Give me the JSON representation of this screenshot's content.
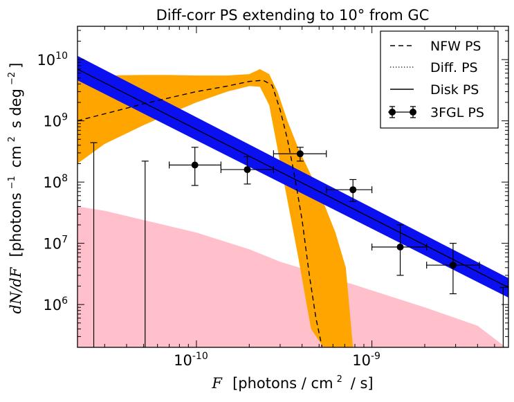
{
  "chart_data": {
    "type": "line",
    "title": "Diff-corr PS extending to 10° from GC",
    "xscale": "log",
    "yscale": "log",
    "xlim": [
      2.1e-11,
      6e-09
    ],
    "ylim": [
      200000.0,
      35000000000.0
    ],
    "x_ticks": [
      {
        "value": 1e-10,
        "base": "10",
        "exp": "-10"
      },
      {
        "value": 1e-09,
        "base": "10",
        "exp": "-9"
      }
    ],
    "y_ticks": [
      {
        "value": 1000000.0,
        "base": "10",
        "exp": "6"
      },
      {
        "value": 10000000.0,
        "base": "10",
        "exp": "7"
      },
      {
        "value": 100000000.0,
        "base": "10",
        "exp": "8"
      },
      {
        "value": 1000000000.0,
        "base": "10",
        "exp": "9"
      },
      {
        "value": 10000000000.0,
        "base": "10",
        "exp": "10"
      }
    ],
    "xlabel": {
      "var": "F",
      "units": "[photons / cm",
      "units_sup": "2",
      "units_end": " / s]"
    },
    "ylabel": {
      "var": "dN/dF",
      "pre": "[photons",
      "pre_sup": "−1",
      "mid": " cm",
      "mid_sup": "2",
      "mid2": " s deg",
      "end_sup": "−2",
      "end": "]"
    },
    "legend": {
      "position": "top-right",
      "entries": [
        {
          "label": "NFW PS",
          "style": "dashed"
        },
        {
          "label": "Diff. PS",
          "style": "dotted"
        },
        {
          "label": "Disk PS",
          "style": "solid"
        },
        {
          "label": "3FGL PS",
          "style": "errorbar"
        }
      ]
    },
    "colors": {
      "nfw_band": "#ffa500",
      "nfw_band_light": "#ffb56a",
      "disk_band": "#0a10f0",
      "diff_band": "#ffc0cb",
      "line": "#000000"
    },
    "series": [
      {
        "name": "NFW PS median",
        "style": "dashed",
        "x": [
          2.1e-11,
          5e-11,
          1e-10,
          1.5e-10,
          2e-10,
          2.4e-10,
          2.7e-10,
          3e-10,
          3.3e-10,
          3.6e-10,
          4e-10,
          4.4e-10,
          4.8e-10,
          5.2e-10
        ],
        "y": [
          1000000000.0,
          1900000000.0,
          3000000000.0,
          3700000000.0,
          4400000000.0,
          4600000000.0,
          3800000000.0,
          1500000000.0,
          500000000.0,
          140000000.0,
          24000000.0,
          3000000.0,
          600000.0,
          200000.0
        ]
      },
      {
        "name": "NFW PS band",
        "style": "band",
        "x": [
          2.1e-11,
          3e-11,
          5e-11,
          7e-11,
          1e-10,
          1.5e-10,
          2e-10,
          2.3e-10,
          2.6e-10,
          2.9e-10,
          3.3e-10,
          3.8e-10,
          4.5e-10,
          5.3e-10,
          6.2e-10,
          7.1e-10,
          7.8e-10
        ],
        "upper": [
          5500000000.0,
          5500000000.0,
          5600000000.0,
          5600000000.0,
          5500000000.0,
          5500000000.0,
          5800000000.0,
          7000000000.0,
          5800000000.0,
          3000000000.0,
          1000000000.0,
          360000000.0,
          130000000.0,
          46000000.0,
          15000000.0,
          4000000.0,
          200000.0
        ],
        "lower": [
          200000000.0,
          420000000.0,
          850000000.0,
          1300000000.0,
          2000000000.0,
          3000000000.0,
          3700000000.0,
          3600000000.0,
          1800000000.0,
          350000000.0,
          50000000.0,
          6000000.0,
          400000.0,
          200000.0,
          200000.0,
          200000.0,
          200000.0
        ]
      },
      {
        "name": "Disk PS",
        "style": "solid",
        "x": [
          2.1e-11,
          6e-09
        ],
        "y": [
          7000000000.0,
          1900000.0
        ],
        "upper": [
          11500000000.0,
          2700000.0
        ],
        "lower": [
          4600000000.0,
          1300000.0
        ]
      },
      {
        "name": "Diff. PS band",
        "style": "band",
        "x": [
          2.1e-11,
          3e-11,
          5e-11,
          1e-10,
          2e-10,
          3e-10,
          5e-10,
          1e-09,
          2e-09,
          4e-09,
          5.8e-09
        ],
        "upper": [
          40000000.0,
          34000000.0,
          24000000.0,
          15000000.0,
          8000000.0,
          5000000.0,
          3200000.0,
          1700000.0,
          900000.0,
          450000.0,
          200000.0
        ],
        "lower": [
          200000.0,
          200000.0,
          200000.0,
          200000.0,
          200000.0,
          200000.0,
          200000.0,
          200000.0,
          200000.0,
          200000.0,
          200000.0
        ]
      },
      {
        "name": "3FGL PS",
        "style": "errorbar",
        "points": [
          {
            "x": 9.8e-11,
            "y": 190000000.0,
            "xlo": 7e-11,
            "xhi": 1.38e-10,
            "ylo": 88000000.0,
            "yhi": 370000000.0
          },
          {
            "x": 1.95e-10,
            "y": 160000000.0,
            "xlo": 1.38e-10,
            "xhi": 2.75e-10,
            "ylo": 93000000.0,
            "yhi": 260000000.0
          },
          {
            "x": 3.9e-10,
            "y": 290000000.0,
            "xlo": 2.75e-10,
            "xhi": 5.5e-10,
            "ylo": 220000000.0,
            "yhi": 370000000.0
          },
          {
            "x": 7.8e-10,
            "y": 75000000.0,
            "xlo": 5.5e-10,
            "xhi": 1e-09,
            "ylo": 48000000.0,
            "yhi": 110000000.0
          },
          {
            "x": 1.45e-09,
            "y": 8700000.0,
            "xlo": 1e-09,
            "xhi": 2.05e-09,
            "ylo": 3000000.0,
            "yhi": 20000000.0
          },
          {
            "x": 2.9e-09,
            "y": 4400000.0,
            "xlo": 2.05e-09,
            "xhi": 4.1e-09,
            "ylo": 1500000.0,
            "yhi": 10000000.0
          }
        ],
        "upper_only": [
          {
            "x": 2.6e-11,
            "yhi": 440000000.0
          },
          {
            "x": 5.1e-11,
            "yhi": 220000000.0
          },
          {
            "x": 5.6e-09,
            "yhi": 1900000.0
          }
        ]
      }
    ]
  }
}
